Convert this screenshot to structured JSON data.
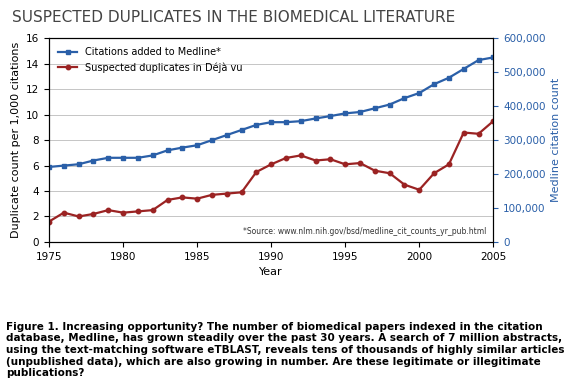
{
  "chart_data": {
    "type": "line",
    "title": "SUSPECTED DUPLICATES IN THE BIOMEDICAL LITERATURE",
    "x_label": "Year",
    "y_label": "Duplicate count per 1,000 citations",
    "y2_label": "Medline citation count",
    "annotations": [
      "*Source: www.nlm.nih.gov/bsd/medline_cit_counts_yr_pub.html"
    ],
    "caption": "Figure 1. Increasing opportunity? The number of biomedical papers indexed in the citation database, Medline, has grown steadily over the past 30 years. A search of 7 million abstracts, using the text-matching software eTBLAST, reveals tens of thousands of highly similar articles (unpublished data), which are also growing in number. Are these legitimate or illegitimate publications?",
    "x": [
      1975,
      1976,
      1977,
      1978,
      1979,
      1980,
      1981,
      1982,
      1983,
      1984,
      1985,
      1986,
      1987,
      1988,
      1989,
      1990,
      1991,
      1992,
      1993,
      1994,
      1995,
      1996,
      1997,
      1998,
      1999,
      2000,
      2001,
      2002,
      2003,
      2004,
      2005
    ],
    "xlim": [
      1975,
      2005
    ],
    "xticks": [
      1975,
      1980,
      1985,
      1990,
      1995,
      2000,
      2005
    ],
    "ylim": [
      0,
      16
    ],
    "yticks": [
      0,
      2,
      4,
      6,
      8,
      10,
      12,
      14,
      16
    ],
    "y2lim": [
      0,
      600000
    ],
    "y2ticks": [
      {
        "value": 0,
        "label": "0"
      },
      {
        "value": 100000,
        "label": "100,000"
      },
      {
        "value": 200000,
        "label": "200,000"
      },
      {
        "value": 300000,
        "label": "300,000"
      },
      {
        "value": 400000,
        "label": "400,000"
      },
      {
        "value": 500000,
        "label": "500,000"
      },
      {
        "value": 600000,
        "label": "600,000"
      }
    ],
    "grid": true,
    "legend": "upper left",
    "series": [
      {
        "name": "Citations added to Medline*",
        "color": "#2a5fa8",
        "marker": "square",
        "line_style": "solid",
        "axis": "y2",
        "values": [
          221000,
          225000,
          229000,
          240000,
          248000,
          248000,
          248000,
          255000,
          270000,
          278000,
          285000,
          300000,
          315000,
          330000,
          345000,
          353000,
          353000,
          356000,
          364000,
          371000,
          379000,
          383000,
          394000,
          405000,
          424000,
          439000,
          465000,
          484000,
          510000,
          536000,
          544000
        ]
      },
      {
        "name": "Suspected duplicates in Déjà vu",
        "color": "#9b2323",
        "marker": "circle",
        "line_style": "solid",
        "axis": "y",
        "values": [
          1.6,
          2.3,
          2.0,
          2.2,
          2.5,
          2.3,
          2.4,
          2.5,
          3.3,
          3.5,
          3.4,
          3.7,
          3.8,
          3.9,
          5.5,
          6.1,
          6.6,
          6.8,
          6.4,
          6.5,
          6.1,
          6.2,
          5.6,
          5.4,
          4.5,
          4.1,
          5.4,
          6.1,
          8.6,
          8.5,
          9.5
        ]
      }
    ]
  }
}
